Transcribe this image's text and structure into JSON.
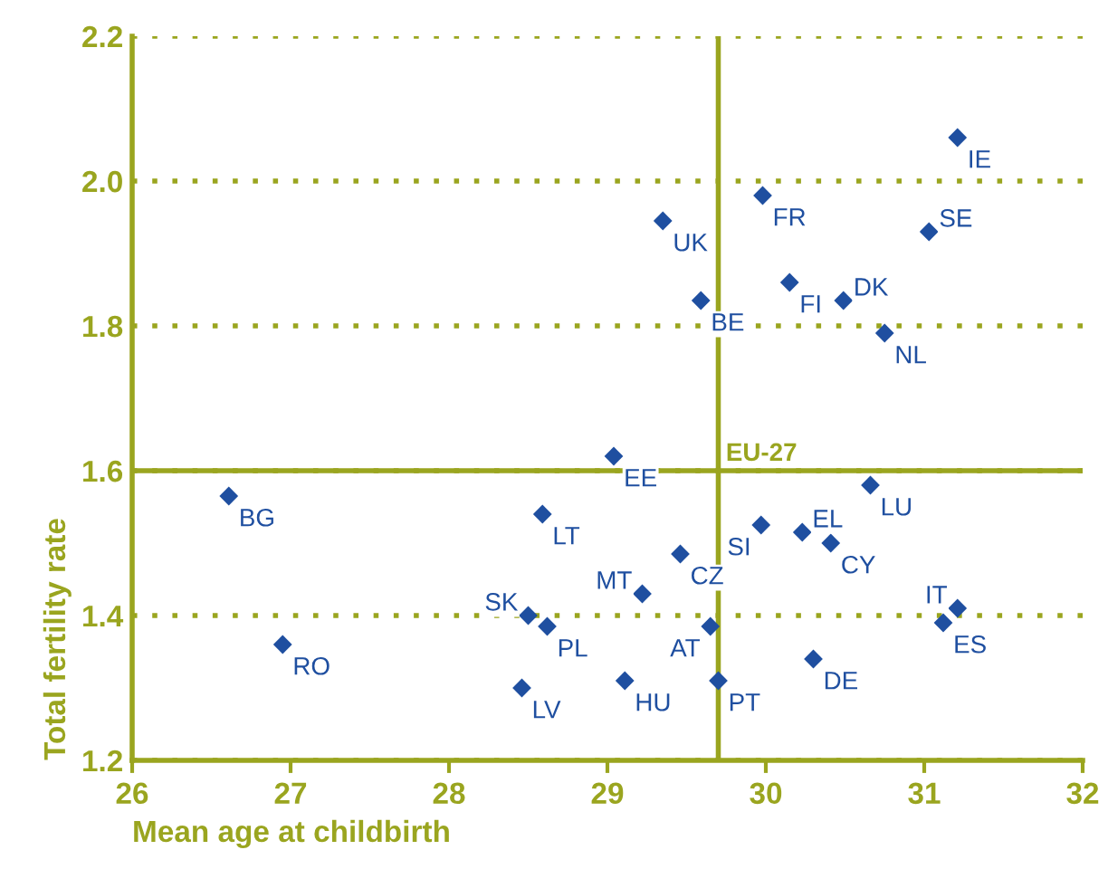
{
  "chart_data": {
    "type": "scatter",
    "xlabel": "Mean age at childbirth",
    "ylabel": "Total fertility rate",
    "x": [
      31.21,
      29.98,
      29.35,
      31.03,
      30.15,
      30.49,
      29.59,
      30.75,
      29.04,
      26.61,
      30.66,
      28.59,
      29.97,
      30.23,
      30.41,
      29.46,
      29.22,
      28.5,
      28.62,
      29.65,
      31.21,
      31.12,
      26.95,
      30.3,
      29.11,
      29.7,
      28.46
    ],
    "series": [
      {
        "color": "#1f4fa0",
        "values": [
          2.06,
          1.98,
          1.945,
          1.93,
          1.86,
          1.835,
          1.835,
          1.79,
          1.62,
          1.565,
          1.58,
          1.54,
          1.525,
          1.515,
          1.5,
          1.485,
          1.43,
          1.4,
          1.385,
          1.385,
          1.41,
          1.39,
          1.36,
          1.34,
          1.31,
          1.31,
          1.3
        ]
      }
    ],
    "annotations": [
      {
        "text": "IE",
        "x": 31.21,
        "y": 2.06
      },
      {
        "text": "FR",
        "x": 29.98,
        "y": 1.98
      },
      {
        "text": "UK",
        "x": 29.35,
        "y": 1.945
      },
      {
        "text": "SE",
        "x": 31.03,
        "y": 1.93
      },
      {
        "text": "FI",
        "x": 30.15,
        "y": 1.86
      },
      {
        "text": "DK",
        "x": 30.49,
        "y": 1.835
      },
      {
        "text": "BE",
        "x": 29.59,
        "y": 1.835
      },
      {
        "text": "NL",
        "x": 30.75,
        "y": 1.79
      },
      {
        "text": "EE",
        "x": 29.04,
        "y": 1.62
      },
      {
        "text": "BG",
        "x": 26.61,
        "y": 1.565
      },
      {
        "text": "LU",
        "x": 30.66,
        "y": 1.58
      },
      {
        "text": "LT",
        "x": 28.59,
        "y": 1.54
      },
      {
        "text": "SI",
        "x": 29.97,
        "y": 1.525
      },
      {
        "text": "EL",
        "x": 30.23,
        "y": 1.515
      },
      {
        "text": "CY",
        "x": 30.41,
        "y": 1.5
      },
      {
        "text": "CZ",
        "x": 29.46,
        "y": 1.485
      },
      {
        "text": "MT",
        "x": 29.22,
        "y": 1.43
      },
      {
        "text": "SK",
        "x": 28.5,
        "y": 1.4
      },
      {
        "text": "PL",
        "x": 28.62,
        "y": 1.385
      },
      {
        "text": "AT",
        "x": 29.65,
        "y": 1.385
      },
      {
        "text": "IT",
        "x": 31.21,
        "y": 1.41
      },
      {
        "text": "ES",
        "x": 31.12,
        "y": 1.39
      },
      {
        "text": "RO",
        "x": 26.95,
        "y": 1.36
      },
      {
        "text": "DE",
        "x": 30.3,
        "y": 1.34
      },
      {
        "text": "HU",
        "x": 29.11,
        "y": 1.31
      },
      {
        "text": "PT",
        "x": 29.7,
        "y": 1.31
      },
      {
        "text": "LV",
        "x": 28.46,
        "y": 1.3
      }
    ],
    "ref_lines": [
      {
        "axis": "x",
        "value": 29.7,
        "color": "#9aa51f"
      },
      {
        "axis": "y",
        "value": 1.6,
        "label": "EU-27",
        "color": "#9aa51f"
      }
    ],
    "xlim": [
      26,
      32
    ],
    "xticks": [
      26,
      27,
      28,
      29,
      30,
      31,
      32
    ],
    "ylim": [
      1.2,
      2.2
    ],
    "yticks": [
      1.2,
      1.4,
      1.6,
      1.8,
      {
        "value": 2,
        "label": "2.0"
      },
      2.2
    ],
    "grid": "y",
    "marker": "diamond"
  }
}
